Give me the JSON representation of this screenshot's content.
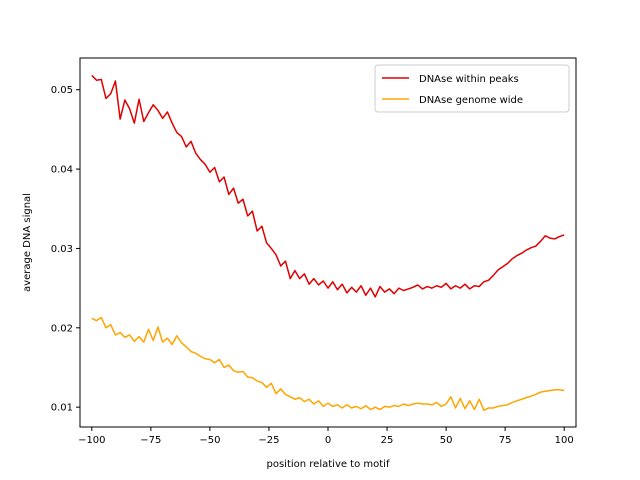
{
  "chart_data": {
    "type": "line",
    "title": "",
    "xlabel": "position relative to motif",
    "ylabel": "average DNA signal",
    "xlim": [
      -105,
      105
    ],
    "ylim": [
      0.0075,
      0.054
    ],
    "xticks": [
      -100,
      -75,
      -50,
      -25,
      0,
      25,
      50,
      75,
      100
    ],
    "xtick_labels": [
      "−100",
      "−75",
      "−50",
      "−25",
      "0",
      "25",
      "50",
      "75",
      "100"
    ],
    "yticks": [
      0.01,
      0.02,
      0.03,
      0.04,
      0.05
    ],
    "ytick_labels": [
      "0.01",
      "0.02",
      "0.03",
      "0.04",
      "0.05"
    ],
    "grid": false,
    "legend_position": "top-right",
    "series": [
      {
        "name": "DNAse within peaks",
        "color": "#e00000",
        "x": [
          -100,
          -98,
          -96,
          -94,
          -92,
          -90,
          -88,
          -86,
          -84,
          -82,
          -80,
          -78,
          -76,
          -74,
          -72,
          -70,
          -68,
          -66,
          -64,
          -62,
          -60,
          -58,
          -56,
          -54,
          -52,
          -50,
          -48,
          -46,
          -44,
          -42,
          -40,
          -38,
          -36,
          -34,
          -32,
          -30,
          -28,
          -26,
          -24,
          -22,
          -20,
          -18,
          -16,
          -14,
          -12,
          -10,
          -8,
          -6,
          -4,
          -2,
          0,
          2,
          4,
          6,
          8,
          10,
          12,
          14,
          16,
          18,
          20,
          22,
          24,
          26,
          28,
          30,
          32,
          34,
          36,
          38,
          40,
          42,
          44,
          46,
          48,
          50,
          52,
          54,
          56,
          58,
          60,
          62,
          64,
          66,
          68,
          70,
          72,
          74,
          76,
          78,
          80,
          82,
          84,
          86,
          88,
          90,
          92,
          94,
          96,
          98,
          100
        ],
        "values": [
          0.0518,
          0.0512,
          0.0513,
          0.0489,
          0.0495,
          0.0511,
          0.0463,
          0.0487,
          0.0476,
          0.0458,
          0.0488,
          0.046,
          0.0471,
          0.0481,
          0.0474,
          0.0464,
          0.0472,
          0.0458,
          0.0446,
          0.0441,
          0.0428,
          0.0435,
          0.042,
          0.0412,
          0.0406,
          0.0396,
          0.0402,
          0.0384,
          0.039,
          0.0368,
          0.0376,
          0.0357,
          0.0362,
          0.0341,
          0.0347,
          0.0322,
          0.0328,
          0.0307,
          0.03,
          0.0292,
          0.0278,
          0.0284,
          0.0262,
          0.0272,
          0.0262,
          0.0268,
          0.0255,
          0.0262,
          0.0254,
          0.0259,
          0.025,
          0.0258,
          0.0248,
          0.0255,
          0.0244,
          0.0251,
          0.0245,
          0.0253,
          0.0241,
          0.025,
          0.0239,
          0.0252,
          0.0245,
          0.0249,
          0.0243,
          0.025,
          0.0247,
          0.0249,
          0.0251,
          0.0254,
          0.0249,
          0.0252,
          0.025,
          0.0253,
          0.0251,
          0.0256,
          0.0249,
          0.0253,
          0.025,
          0.0255,
          0.0249,
          0.0253,
          0.0252,
          0.0258,
          0.026,
          0.0266,
          0.0273,
          0.0277,
          0.0281,
          0.0287,
          0.0291,
          0.0294,
          0.0298,
          0.0301,
          0.0303,
          0.0309,
          0.0316,
          0.0313,
          0.0312,
          0.0315,
          0.0317
        ]
      },
      {
        "name": "DNAse genome wide",
        "color": "#ffa500",
        "x": [
          -100,
          -98,
          -96,
          -94,
          -92,
          -90,
          -88,
          -86,
          -84,
          -82,
          -80,
          -78,
          -76,
          -74,
          -72,
          -70,
          -68,
          -66,
          -64,
          -62,
          -60,
          -58,
          -56,
          -54,
          -52,
          -50,
          -48,
          -46,
          -44,
          -42,
          -40,
          -38,
          -36,
          -34,
          -32,
          -30,
          -28,
          -26,
          -24,
          -22,
          -20,
          -18,
          -16,
          -14,
          -12,
          -10,
          -8,
          -6,
          -4,
          -2,
          0,
          2,
          4,
          6,
          8,
          10,
          12,
          14,
          16,
          18,
          20,
          22,
          24,
          26,
          28,
          30,
          32,
          34,
          36,
          38,
          40,
          42,
          44,
          46,
          48,
          50,
          52,
          54,
          56,
          58,
          60,
          62,
          64,
          66,
          68,
          70,
          72,
          74,
          76,
          78,
          80,
          82,
          84,
          86,
          88,
          90,
          92,
          94,
          96,
          98,
          100
        ],
        "values": [
          0.0212,
          0.0209,
          0.0213,
          0.02,
          0.0204,
          0.0191,
          0.0194,
          0.0188,
          0.0191,
          0.0183,
          0.0189,
          0.0182,
          0.0198,
          0.0184,
          0.0201,
          0.0182,
          0.0187,
          0.0179,
          0.019,
          0.0181,
          0.0176,
          0.017,
          0.0168,
          0.0164,
          0.0161,
          0.016,
          0.0156,
          0.016,
          0.015,
          0.0153,
          0.0146,
          0.0144,
          0.0145,
          0.0138,
          0.0137,
          0.0133,
          0.0131,
          0.0125,
          0.013,
          0.0117,
          0.0123,
          0.0116,
          0.0113,
          0.011,
          0.0112,
          0.0107,
          0.011,
          0.0104,
          0.0108,
          0.0101,
          0.0105,
          0.0101,
          0.0103,
          0.0099,
          0.0103,
          0.0099,
          0.0101,
          0.0098,
          0.0102,
          0.0097,
          0.01,
          0.0097,
          0.0101,
          0.01,
          0.0102,
          0.0101,
          0.0104,
          0.0102,
          0.0104,
          0.0105,
          0.0104,
          0.0104,
          0.0103,
          0.0106,
          0.0101,
          0.0104,
          0.0113,
          0.0099,
          0.0111,
          0.0098,
          0.0108,
          0.0097,
          0.011,
          0.0096,
          0.0099,
          0.0099,
          0.0101,
          0.0102,
          0.0103,
          0.0106,
          0.0108,
          0.011,
          0.0112,
          0.0114,
          0.0116,
          0.0119,
          0.012,
          0.0121,
          0.0122,
          0.0122,
          0.0121
        ]
      }
    ]
  }
}
